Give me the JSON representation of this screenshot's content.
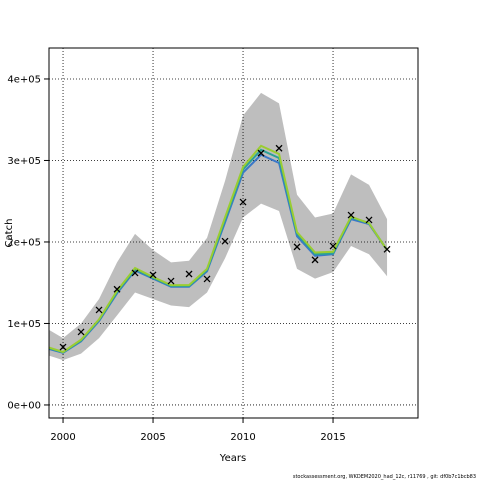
{
  "chart_data": {
    "type": "line",
    "x_label": "Years",
    "y_label": "Catch",
    "footer": "stockassessment.org, WKDEM2020_had_12c, r11769 , git: df0b7c1bcb83",
    "x": [
      1999,
      2000,
      2001,
      2002,
      2003,
      2004,
      2005,
      2006,
      2007,
      2008,
      2009,
      2010,
      2011,
      2012,
      2013,
      2014,
      2015,
      2016,
      2017,
      2018
    ],
    "band": {
      "color": "#bebebe",
      "upper": [
        95000,
        82000,
        100000,
        130000,
        175000,
        210000,
        190000,
        175000,
        177000,
        205000,
        275000,
        355000,
        383000,
        370000,
        258000,
        230000,
        235000,
        283000,
        270000,
        228000
      ],
      "lower": [
        62000,
        55000,
        63000,
        82000,
        110000,
        138000,
        130000,
        122000,
        120000,
        138000,
        180000,
        230000,
        247000,
        238000,
        167000,
        155000,
        163000,
        195000,
        185000,
        158000
      ]
    },
    "series": [
      {
        "color": "#3a78c9",
        "values": [
          70000,
          64000,
          78000,
          103000,
          137000,
          165000,
          155000,
          145000,
          145000,
          164000,
          224000,
          285000,
          307000,
          297000,
          207000,
          183000,
          185000,
          228000,
          222000,
          190000
        ]
      },
      {
        "color": "#2aa198",
        "values": [
          71000,
          64500,
          79000,
          104000,
          138500,
          166500,
          156000,
          146000,
          146000,
          165500,
          227000,
          289000,
          313000,
          303000,
          210000,
          185000,
          186000,
          230000,
          223000,
          190000
        ]
      },
      {
        "color": "#9acd32",
        "values": [
          72000,
          65000,
          80000,
          105000,
          140000,
          168000,
          157000,
          147000,
          147000,
          167000,
          230000,
          292000,
          318000,
          308000,
          212000,
          187000,
          188000,
          231000,
          223000,
          190000
        ]
      }
    ],
    "points": {
      "marker": "x",
      "color": "#000000",
      "x": [
        2000,
        2001,
        2002,
        2003,
        2004,
        2005,
        2006,
        2007,
        2008,
        2009,
        2010,
        2011,
        2012,
        2013,
        2014,
        2015,
        2016,
        2017,
        2018
      ],
      "values": [
        71000,
        89600,
        116600,
        142000,
        162000,
        159500,
        152000,
        160700,
        154600,
        201000,
        249000,
        309000,
        315000,
        194000,
        178000,
        195000,
        233000,
        227000,
        191000
      ]
    },
    "xlim": [
      1999.22,
      2019.72
    ],
    "ylim": [
      -16000,
      438000
    ],
    "xticks": [
      2000,
      2005,
      2010,
      2015
    ],
    "yticks": [
      {
        "value": 0,
        "label": "0e+00"
      },
      {
        "value": 100000,
        "label": "1e+05"
      },
      {
        "value": 200000,
        "label": "2e+05"
      },
      {
        "value": 300000,
        "label": "3e+05"
      },
      {
        "value": 400000,
        "label": "4e+05"
      }
    ],
    "grid": true
  }
}
